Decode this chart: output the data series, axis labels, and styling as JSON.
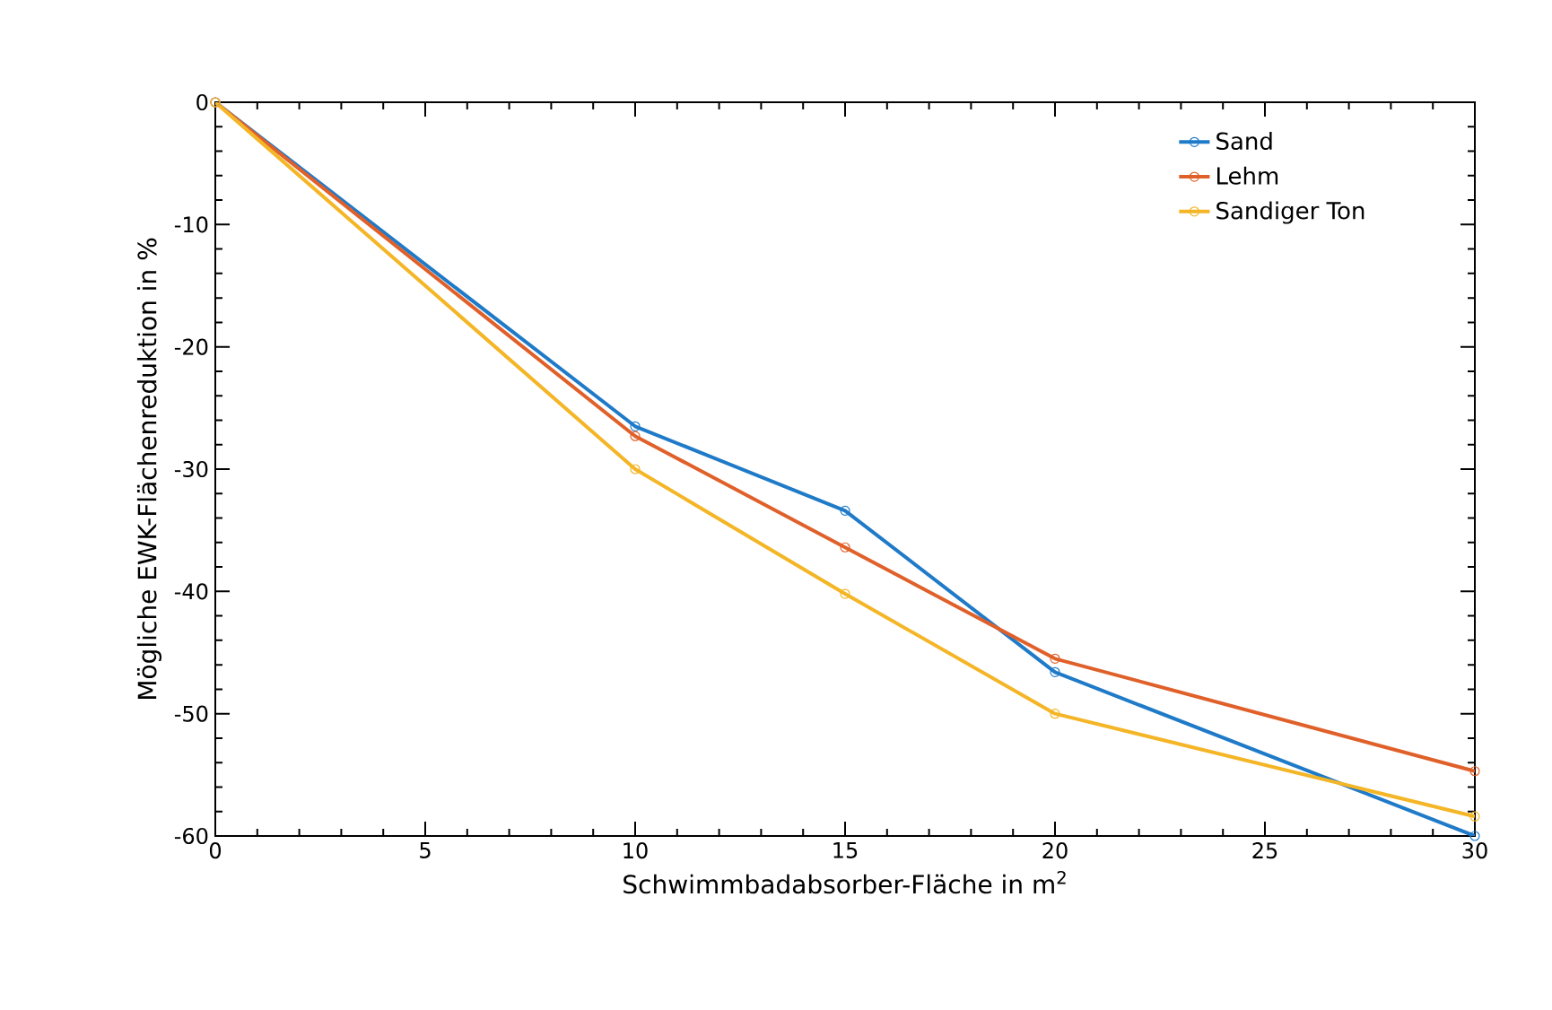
{
  "chart_data": {
    "type": "line",
    "xlabel": "Schwimmbadabsorber-Fläche in m$^{2}$",
    "ylabel": "Mögliche EWK-Flächenreduktion in %",
    "x": [
      0,
      10,
      15,
      20,
      30
    ],
    "series": [
      {
        "name": "Sand",
        "color": "#1f7ac8",
        "values": [
          0,
          -26.5,
          -33.4,
          -46.6,
          -60
        ]
      },
      {
        "name": "Lehm",
        "color": "#e0602a",
        "values": [
          0,
          -27.3,
          -36.4,
          -45.5,
          -54.7
        ]
      },
      {
        "name": "Sandiger Ton",
        "color": "#f4b526",
        "values": [
          0,
          -30,
          -40.2,
          -50,
          -58.4
        ]
      }
    ],
    "xlim": [
      0,
      30
    ],
    "ylim": [
      -60,
      0
    ],
    "xticks": [
      0,
      5,
      10,
      15,
      20,
      25,
      30
    ],
    "yticks": [
      -60,
      -50,
      -40,
      -30,
      -20,
      -10,
      0
    ],
    "legend": "top right",
    "grid": false,
    "marker": "circle",
    "line_style": "solid"
  }
}
